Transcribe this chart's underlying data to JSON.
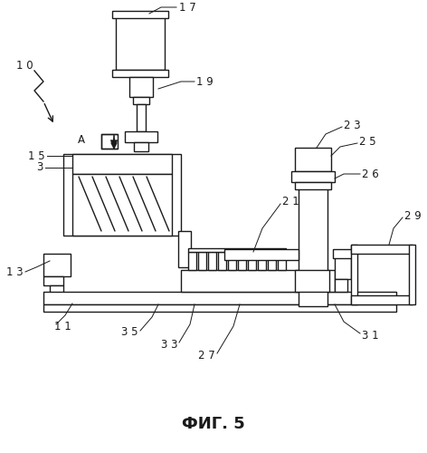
{
  "title": "ФИГ. 5",
  "title_fontsize": 13,
  "background_color": "#ffffff",
  "line_color": "#1a1a1a",
  "lw": 1.0
}
